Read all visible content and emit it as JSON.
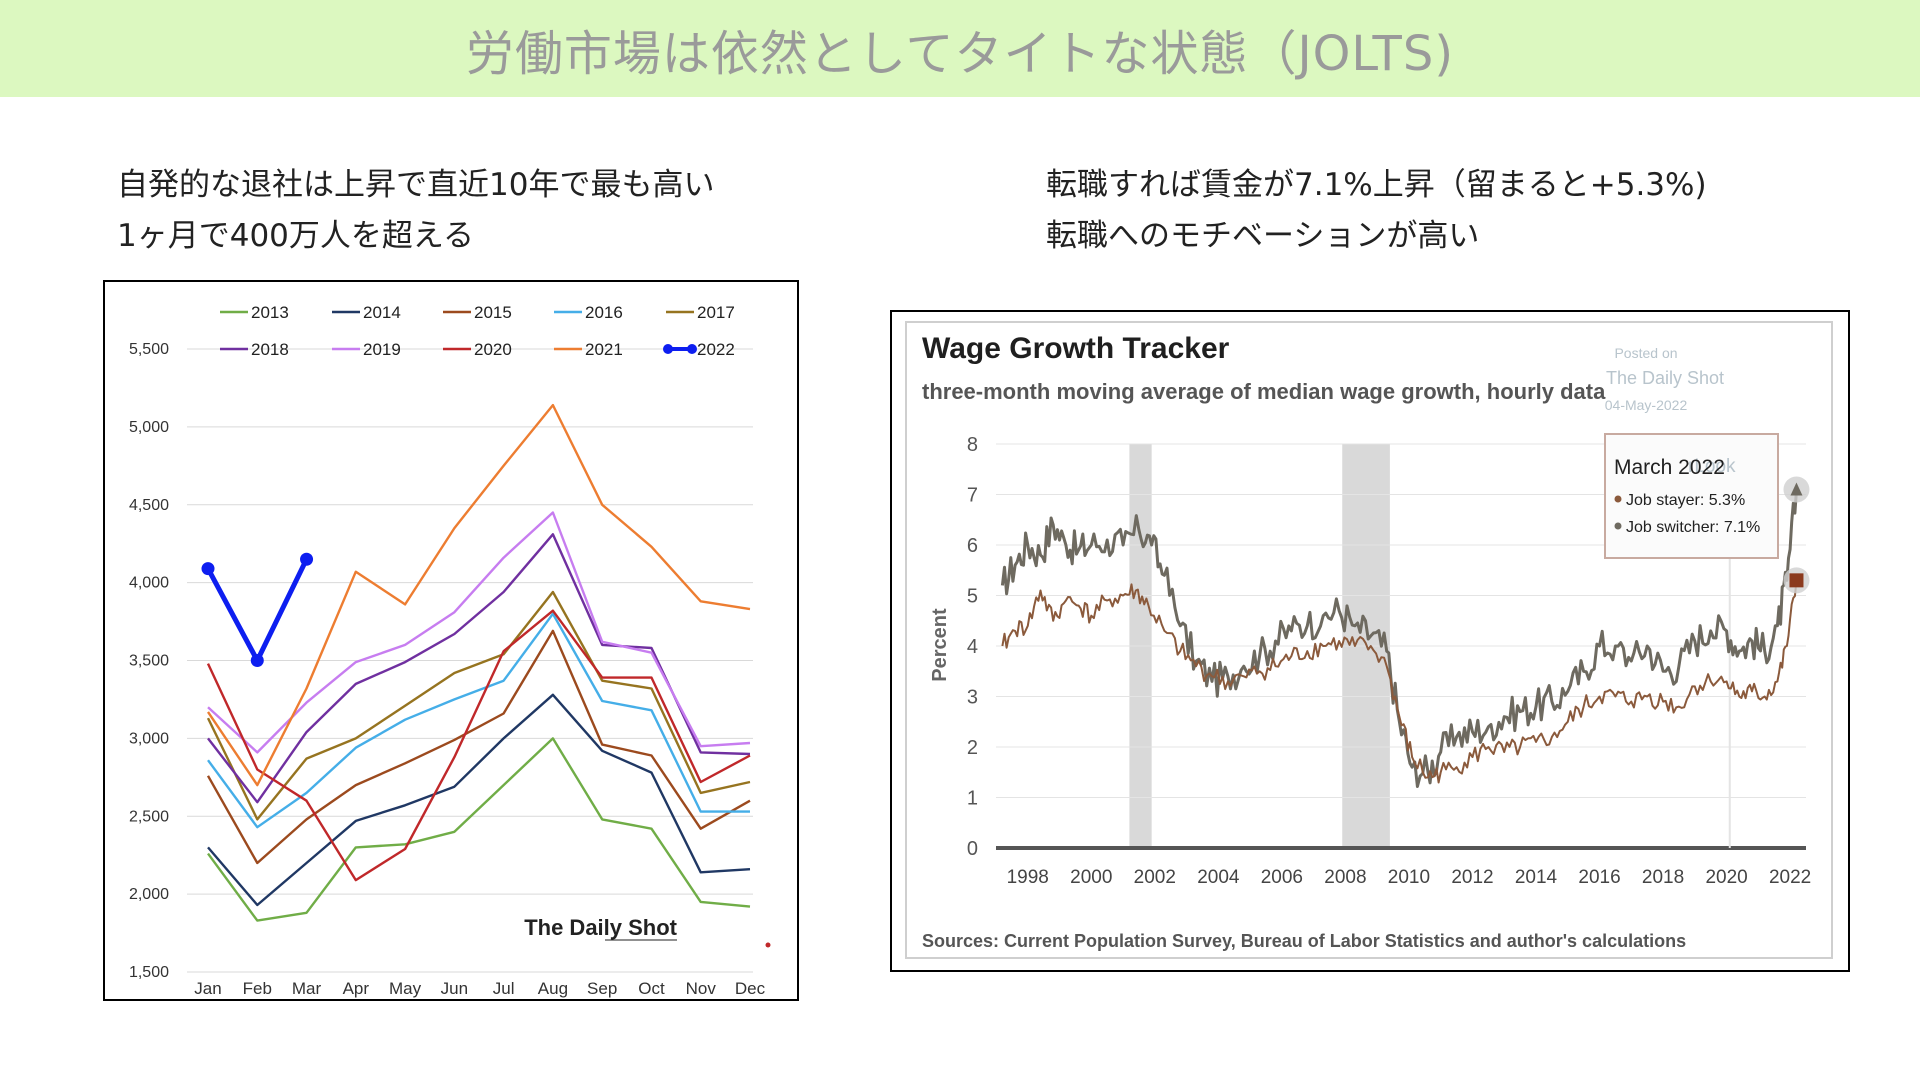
{
  "banner": {
    "title": "労働市場は依然としてタイトな状態（JOLTS)"
  },
  "left_caption": {
    "line1": "自発的な退社は上昇で直近10年で最も高い",
    "line2": "1ヶ月で400万人を超える"
  },
  "right_caption": {
    "line1": "転職すれば賃金が7.1%上昇（留まると+5.3%)",
    "line2": "転職へのモチベーションが高い"
  },
  "colors": {
    "2013": "#70ad47",
    "2014": "#203864",
    "2015": "#9c4a1e",
    "2016": "#45aee8",
    "2017": "#967420",
    "2018": "#7030a0",
    "2019": "#c77df0",
    "2020": "#c0282a",
    "2021": "#ed7d31",
    "2022": "#0d1ef0",
    "stayer": "#8b5a3c",
    "switcher": "#6e6a60",
    "recession": "#d9d9d9",
    "banner": "#dcf8c0"
  },
  "chart_data": [
    {
      "type": "line",
      "title": "",
      "x": [
        "Jan",
        "Feb",
        "Mar",
        "Apr",
        "May",
        "Jun",
        "Jul",
        "Aug",
        "Sep",
        "Oct",
        "Nov",
        "Dec"
      ],
      "ylim": [
        1500,
        5500
      ],
      "yticks": [
        "1,500",
        "2,000",
        "2,500",
        "3,000",
        "3,500",
        "4,000",
        "4,500",
        "5,000",
        "5,500"
      ],
      "grid": true,
      "legend_position": "top",
      "watermark": "The Daily Shot",
      "series": [
        {
          "name": "2013",
          "values": [
            2260,
            1830,
            1880,
            2300,
            2320,
            2400,
            2700,
            3000,
            2480,
            2420,
            1950,
            1920
          ]
        },
        {
          "name": "2014",
          "values": [
            2300,
            1930,
            2200,
            2470,
            2570,
            2690,
            3000,
            3280,
            2920,
            2780,
            2140,
            2160
          ]
        },
        {
          "name": "2015",
          "values": [
            2760,
            2200,
            2480,
            2700,
            2840,
            2990,
            3160,
            3690,
            2960,
            2890,
            2420,
            2600
          ]
        },
        {
          "name": "2016",
          "values": [
            2860,
            2430,
            2650,
            2940,
            3120,
            3250,
            3370,
            3800,
            3240,
            3180,
            2530,
            2530
          ]
        },
        {
          "name": "2017",
          "values": [
            3130,
            2480,
            2870,
            3000,
            3210,
            3420,
            3540,
            3940,
            3370,
            3320,
            2650,
            2720
          ]
        },
        {
          "name": "2018",
          "values": [
            3000,
            2590,
            3040,
            3350,
            3490,
            3670,
            3940,
            4310,
            3600,
            3580,
            2910,
            2900
          ]
        },
        {
          "name": "2019",
          "values": [
            3200,
            2910,
            3230,
            3490,
            3600,
            3810,
            4160,
            4450,
            3620,
            3550,
            2950,
            2970
          ]
        },
        {
          "name": "2020",
          "values": [
            3480,
            2800,
            2600,
            2090,
            2290,
            2880,
            3560,
            3820,
            3390,
            3390,
            2720,
            2890
          ]
        },
        {
          "name": "2021",
          "values": [
            3170,
            2700,
            3320,
            4070,
            3860,
            4350,
            4750,
            5140,
            4500,
            4230,
            3880,
            3830
          ]
        },
        {
          "name": "2022",
          "values": [
            4090,
            3500,
            4150,
            null,
            null,
            null,
            null,
            null,
            null,
            null,
            null,
            null
          ]
        }
      ]
    },
    {
      "type": "line",
      "title": "Wage Growth Tracker",
      "subtitle": "three-month moving average of median wage growth, hourly data",
      "ylabel": "Percent",
      "xlim": [
        1997,
        2022.5
      ],
      "ylim": [
        0,
        8
      ],
      "x_ticks": [
        "1998",
        "2000",
        "2002",
        "2004",
        "2006",
        "2008",
        "2010",
        "2012",
        "2014",
        "2016",
        "2018",
        "2020",
        "2022"
      ],
      "y_ticks": [
        "0",
        "1",
        "2",
        "3",
        "4",
        "5",
        "6",
        "7",
        "8"
      ],
      "recessions": [
        [
          2001.2,
          2001.9
        ],
        [
          2007.9,
          2009.4
        ]
      ],
      "source": "Sources: Current Population Survey, Bureau of Labor Statistics and author's calculations",
      "posted_note": [
        "Posted on",
        "The Daily Shot",
        "04-May-2022"
      ],
      "tooltip": {
        "title": "March 2022",
        "stayer": "Job stayer: 5.3%",
        "switcher": "Job switcher: 7.1%",
        "ghost": "rLook"
      },
      "series": [
        {
          "name": "Job stayer",
          "points": [
            [
              1997.2,
              4.0
            ],
            [
              1997.6,
              4.3
            ],
            [
              1998.0,
              4.4
            ],
            [
              1998.4,
              5.1
            ],
            [
              1998.8,
              4.5
            ],
            [
              1999.2,
              4.9
            ],
            [
              1999.6,
              4.8
            ],
            [
              2000.0,
              4.6
            ],
            [
              2000.5,
              4.9
            ],
            [
              2001.0,
              5.0
            ],
            [
              2001.4,
              5.1
            ],
            [
              2001.8,
              4.8
            ],
            [
              2002.3,
              4.3
            ],
            [
              2002.8,
              3.9
            ],
            [
              2003.3,
              3.6
            ],
            [
              2003.8,
              3.4
            ],
            [
              2004.3,
              3.3
            ],
            [
              2004.8,
              3.4
            ],
            [
              2005.3,
              3.5
            ],
            [
              2005.8,
              3.6
            ],
            [
              2006.3,
              3.8
            ],
            [
              2006.8,
              3.9
            ],
            [
              2007.3,
              4.0
            ],
            [
              2007.8,
              4.1
            ],
            [
              2008.3,
              4.0
            ],
            [
              2008.8,
              4.0
            ],
            [
              2009.3,
              3.6
            ],
            [
              2009.7,
              2.6
            ],
            [
              2010.1,
              1.8
            ],
            [
              2010.6,
              1.4
            ],
            [
              2011.0,
              1.5
            ],
            [
              2011.5,
              1.6
            ],
            [
              2012.0,
              1.8
            ],
            [
              2012.5,
              2.0
            ],
            [
              2013.0,
              1.9
            ],
            [
              2013.5,
              2.0
            ],
            [
              2014.0,
              2.1
            ],
            [
              2014.5,
              2.2
            ],
            [
              2015.0,
              2.5
            ],
            [
              2015.5,
              2.8
            ],
            [
              2016.0,
              3.0
            ],
            [
              2016.5,
              3.0
            ],
            [
              2017.0,
              2.9
            ],
            [
              2017.5,
              3.0
            ],
            [
              2018.0,
              2.9
            ],
            [
              2018.5,
              2.8
            ],
            [
              2019.0,
              3.2
            ],
            [
              2019.5,
              3.3
            ],
            [
              2020.0,
              3.3
            ],
            [
              2020.4,
              3.0
            ],
            [
              2020.8,
              3.1
            ],
            [
              2021.2,
              3.0
            ],
            [
              2021.6,
              3.3
            ],
            [
              2021.9,
              4.0
            ],
            [
              2022.2,
              5.3
            ]
          ]
        },
        {
          "name": "Job switcher",
          "points": [
            [
              1997.2,
              5.2
            ],
            [
              1997.6,
              5.6
            ],
            [
              1998.0,
              6.0
            ],
            [
              1998.4,
              5.8
            ],
            [
              1998.8,
              6.4
            ],
            [
              1999.2,
              6.0
            ],
            [
              1999.6,
              5.9
            ],
            [
              2000.0,
              6.0
            ],
            [
              2000.5,
              6.1
            ],
            [
              2001.0,
              6.0
            ],
            [
              2001.5,
              6.3
            ],
            [
              2001.9,
              6.0
            ],
            [
              2002.3,
              5.4
            ],
            [
              2002.8,
              4.4
            ],
            [
              2003.3,
              3.7
            ],
            [
              2003.8,
              3.3
            ],
            [
              2004.3,
              3.4
            ],
            [
              2004.8,
              3.6
            ],
            [
              2005.3,
              3.8
            ],
            [
              2005.8,
              4.1
            ],
            [
              2006.3,
              4.3
            ],
            [
              2006.8,
              4.4
            ],
            [
              2007.3,
              4.6
            ],
            [
              2007.8,
              4.7
            ],
            [
              2008.3,
              4.4
            ],
            [
              2008.8,
              4.2
            ],
            [
              2009.3,
              3.9
            ],
            [
              2009.7,
              2.5
            ],
            [
              2010.1,
              1.6
            ],
            [
              2010.6,
              1.5
            ],
            [
              2011.0,
              1.9
            ],
            [
              2011.5,
              2.2
            ],
            [
              2012.0,
              2.3
            ],
            [
              2012.5,
              2.4
            ],
            [
              2013.0,
              2.6
            ],
            [
              2013.5,
              2.7
            ],
            [
              2014.0,
              2.8
            ],
            [
              2014.5,
              2.9
            ],
            [
              2015.0,
              3.1
            ],
            [
              2015.5,
              3.5
            ],
            [
              2016.0,
              4.0
            ],
            [
              2016.5,
              4.0
            ],
            [
              2017.0,
              3.7
            ],
            [
              2017.5,
              4.0
            ],
            [
              2018.0,
              3.5
            ],
            [
              2018.5,
              3.6
            ],
            [
              2019.0,
              4.1
            ],
            [
              2019.5,
              4.3
            ],
            [
              2020.0,
              4.3
            ],
            [
              2020.4,
              3.9
            ],
            [
              2020.8,
              4.1
            ],
            [
              2021.2,
              3.9
            ],
            [
              2021.6,
              4.4
            ],
            [
              2021.9,
              5.3
            ],
            [
              2022.2,
              7.1
            ]
          ]
        }
      ]
    }
  ]
}
